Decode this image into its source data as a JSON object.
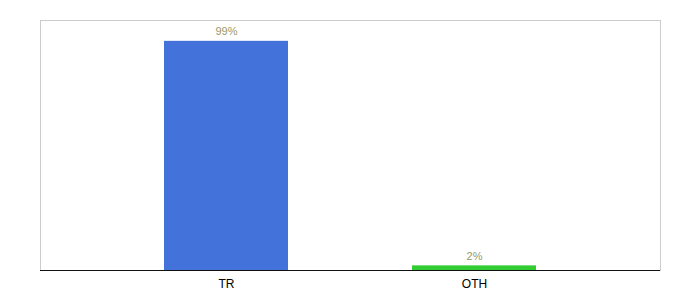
{
  "chart_data": {
    "type": "bar",
    "categories": [
      "TR",
      "OTH"
    ],
    "values": [
      99,
      2
    ],
    "value_labels": [
      "99%",
      "2%"
    ],
    "colors": [
      "#4472db",
      "#33cc33"
    ],
    "ylim": [
      0,
      108
    ],
    "data_labels": true,
    "tick_labels": "x",
    "grid": false
  }
}
